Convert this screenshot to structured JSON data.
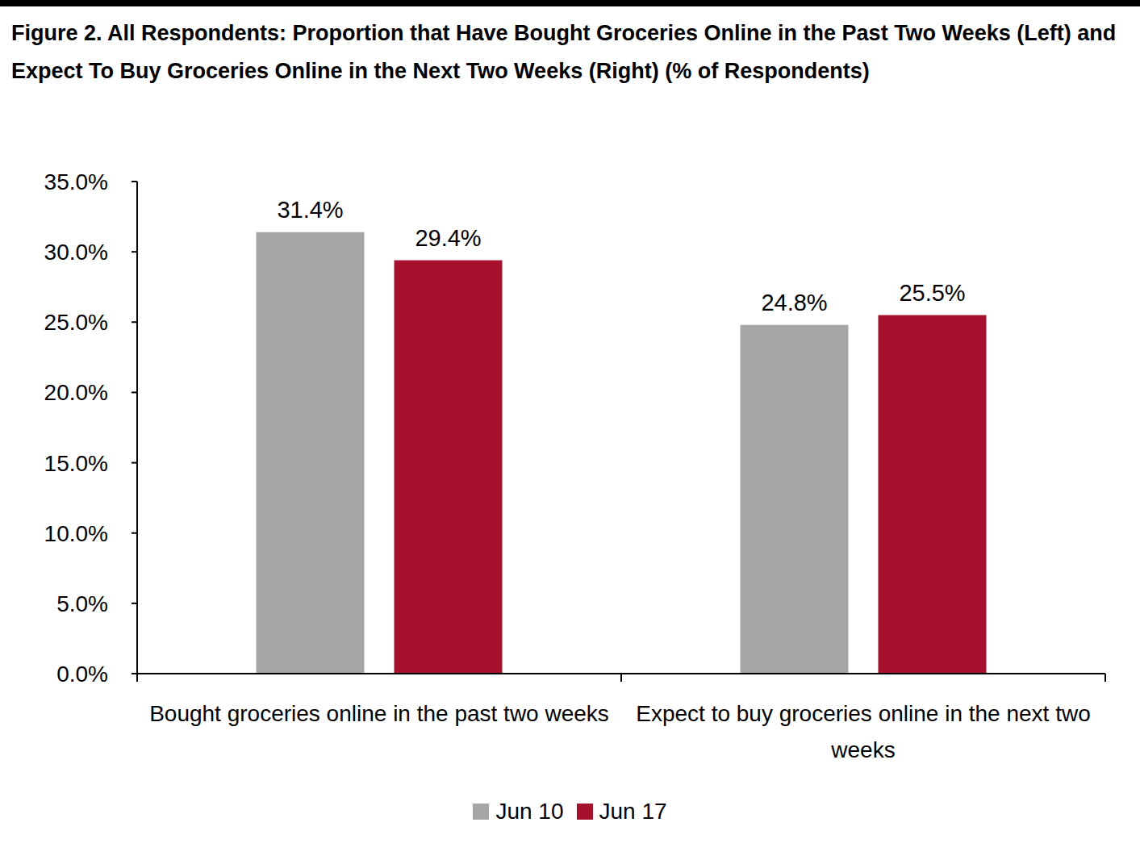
{
  "chart_data": {
    "type": "bar",
    "title": "Figure 2. All Respondents: Proportion that Have Bought Groceries Online in the Past Two Weeks (Left) and Expect To Buy Groceries Online in the Next Two Weeks (Right) (% of Respondents)",
    "categories": [
      "Bought groceries online in the past two weeks",
      "Expect to buy groceries online in the next two weeks"
    ],
    "series": [
      {
        "name": "Jun 10",
        "color": "#a6a6a6",
        "values": [
          31.4,
          24.8
        ],
        "value_labels": [
          "31.4%",
          "24.8%"
        ]
      },
      {
        "name": "Jun 17",
        "color": "#a6112d",
        "values": [
          29.4,
          25.5
        ],
        "value_labels": [
          "29.4%",
          "25.5%"
        ]
      }
    ],
    "ylim": [
      0,
      35
    ],
    "yticks": [
      {
        "value": 0,
        "label": "0.0%"
      },
      {
        "value": 5,
        "label": "5.0%"
      },
      {
        "value": 10,
        "label": "10.0%"
      },
      {
        "value": 15,
        "label": "15.0%"
      },
      {
        "value": 20,
        "label": "20.0%"
      },
      {
        "value": 25,
        "label": "25.0%"
      },
      {
        "value": 30,
        "label": "30.0%"
      },
      {
        "value": 35,
        "label": "35.0%"
      }
    ],
    "grid": false,
    "legend": "bottom",
    "data_labels": true
  }
}
